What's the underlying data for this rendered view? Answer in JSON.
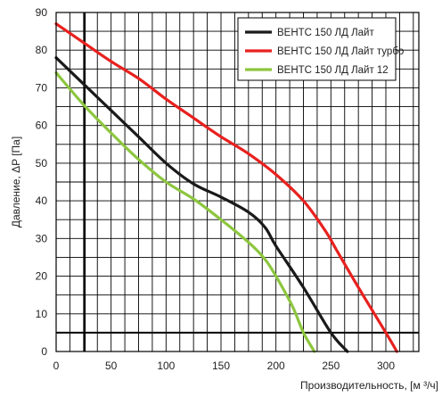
{
  "chart_data": {
    "type": "line",
    "xlabel": "Производительность, [м ³/ч]",
    "ylabel": "Давление, ΔP [Па]",
    "xlim": [
      0,
      330
    ],
    "ylim": [
      0,
      90
    ],
    "x_ticks": [
      "0",
      "50",
      "100",
      "150",
      "200",
      "250",
      "300"
    ],
    "y_ticks": [
      "0",
      "10",
      "20",
      "30",
      "40",
      "50",
      "60",
      "70",
      "80",
      "90"
    ],
    "grid": true,
    "legend_position": "top-right",
    "reference_lines": {
      "x": 26,
      "y": 5
    },
    "series": [
      {
        "name": "ВЕНТС 150 ЛД Лайт",
        "color": "#1a1a1a",
        "points": [
          [
            0,
            78
          ],
          [
            25,
            71
          ],
          [
            50,
            64
          ],
          [
            75,
            57
          ],
          [
            100,
            50
          ],
          [
            125,
            44.5
          ],
          [
            150,
            41
          ],
          [
            175,
            37
          ],
          [
            190,
            33
          ],
          [
            200,
            28
          ],
          [
            225,
            17
          ],
          [
            250,
            5
          ],
          [
            265,
            0
          ]
        ]
      },
      {
        "name": "ВЕНТС 150 ЛД Лайт турбо",
        "color": "#e8211f",
        "points": [
          [
            0,
            87
          ],
          [
            25,
            82
          ],
          [
            50,
            77
          ],
          [
            75,
            72.5
          ],
          [
            100,
            67
          ],
          [
            125,
            62
          ],
          [
            150,
            57
          ],
          [
            175,
            52.5
          ],
          [
            200,
            47
          ],
          [
            225,
            40
          ],
          [
            245,
            32
          ],
          [
            255,
            27
          ],
          [
            275,
            17
          ],
          [
            300,
            5
          ],
          [
            310,
            0
          ]
        ]
      },
      {
        "name": "ВЕНТС 150 ЛД Лайт 12",
        "color": "#8dc63f",
        "points": [
          [
            0,
            74
          ],
          [
            25,
            65.5
          ],
          [
            50,
            58
          ],
          [
            75,
            51
          ],
          [
            100,
            45
          ],
          [
            125,
            40.5
          ],
          [
            150,
            35
          ],
          [
            175,
            29
          ],
          [
            190,
            24.5
          ],
          [
            200,
            20
          ],
          [
            215,
            12
          ],
          [
            225,
            5
          ],
          [
            235,
            0
          ]
        ]
      }
    ]
  }
}
